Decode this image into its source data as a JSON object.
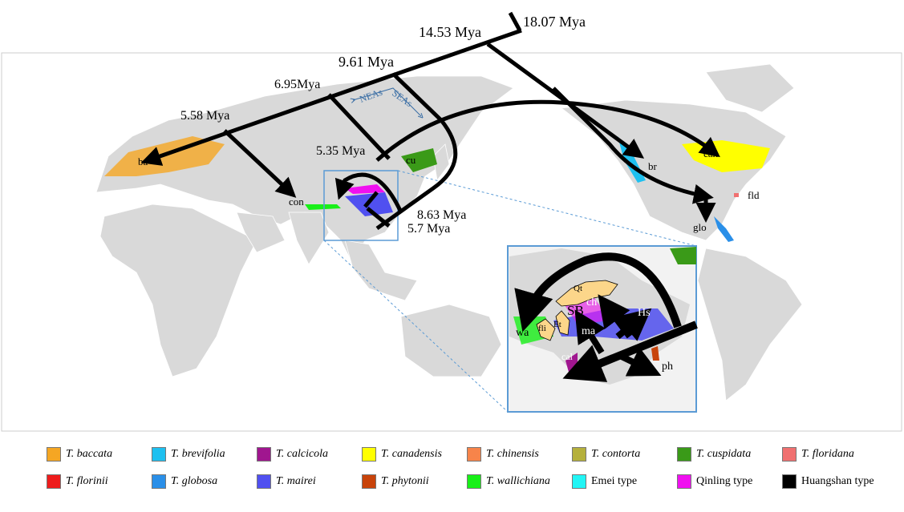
{
  "map": {
    "divergence_labels": [
      "18.07 Mya",
      "14.53 Mya",
      "9.61 Mya",
      "6.95Mya",
      "5.58 Mya",
      "5.35 Mya",
      "8.63 Mya",
      "5.7 Mya"
    ],
    "lineage_labels": [
      "ba",
      "con",
      "cu",
      "br",
      "can",
      "fld",
      "glo"
    ],
    "arrow_labels": [
      "NEAs",
      "SEAs"
    ],
    "inset_labels": [
      "Qt",
      "ch",
      "SB",
      "Hs",
      "wa",
      "fli",
      "Et",
      "ma",
      "cal",
      "ph"
    ],
    "land_color": "#d9d9d9",
    "arrow_color": "#000000",
    "inset_border_color": "#5b9bd5"
  },
  "legend": [
    {
      "label": "T. baccata",
      "color": "#f5a623",
      "italic": true
    },
    {
      "label": "T. brevifolia",
      "color": "#1ec0f0",
      "italic": true
    },
    {
      "label": "T. calcicola",
      "color": "#a0168f",
      "italic": true
    },
    {
      "label": "T. canadensis",
      "color": "#ffff00",
      "italic": true
    },
    {
      "label": "T. chinensis",
      "color": "#f7844a",
      "italic": true
    },
    {
      "label": "T. contorta",
      "color": "#b5b03c",
      "italic": true
    },
    {
      "label": "T. cuspidata",
      "color": "#3a9a18",
      "italic": true
    },
    {
      "label": "T. floridana",
      "color": "#f07070",
      "italic": true
    },
    {
      "label": "T. florinii",
      "color": "#ee1c1c",
      "italic": true
    },
    {
      "label": "T. globosa",
      "color": "#2a8fe8",
      "italic": true
    },
    {
      "label": "T. mairei",
      "color": "#5050f0",
      "italic": true
    },
    {
      "label": "T. phytonii",
      "color": "#c8430a",
      "italic": true
    },
    {
      "label": "T. wallichiana",
      "color": "#18f018",
      "italic": true
    },
    {
      "label": "Emei type",
      "color": "#22f5f5",
      "italic": false
    },
    {
      "label": "Qinling type",
      "color": "#f010f0",
      "italic": false
    },
    {
      "label": "Huangshan type",
      "color": "#000000",
      "italic": false
    }
  ]
}
